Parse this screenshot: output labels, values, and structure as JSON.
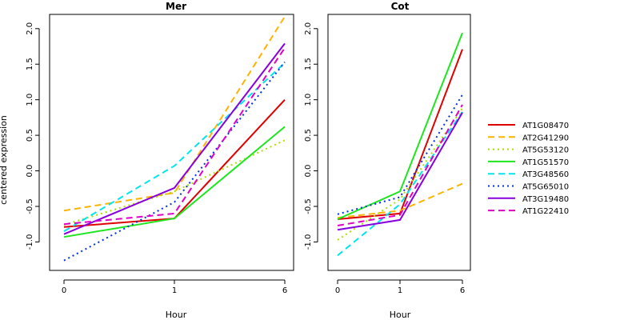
{
  "chart_data": {
    "type": "line",
    "ylabel": "centered expression",
    "xlabel": "Hour",
    "x": [
      0,
      1,
      6
    ],
    "x_tick_labels": [
      "0",
      "1",
      "6"
    ],
    "ylim": [
      -1.4,
      2.2
    ],
    "y_ticks": [
      -1.0,
      -0.5,
      0.0,
      0.5,
      1.0,
      1.5,
      2.0
    ],
    "y_tick_labels": [
      "-1.0",
      "-0.5",
      "0.0",
      "0.5",
      "1.0",
      "1.5",
      "2.0"
    ],
    "legend_position": "right",
    "series_styles": [
      {
        "name": "AT1G08470",
        "color": "#e00000",
        "dash": "solid"
      },
      {
        "name": "AT2G41290",
        "color": "#ffb300",
        "dash": "dashed"
      },
      {
        "name": "AT5G53120",
        "color": "#a8e000",
        "dash": "dotted"
      },
      {
        "name": "AT1G51570",
        "color": "#1ee61e",
        "dash": "solid"
      },
      {
        "name": "AT3G48560",
        "color": "#00e5ee",
        "dash": "dashed"
      },
      {
        "name": "AT5G65010",
        "color": "#0030e0",
        "dash": "dotted"
      },
      {
        "name": "AT3G19480",
        "color": "#8800dd",
        "dash": "solid"
      },
      {
        "name": "AT1G22410",
        "color": "#e000c8",
        "dash": "dashed"
      }
    ],
    "panels": [
      {
        "title": "Mer",
        "series": [
          {
            "name": "AT1G08470",
            "values": [
              -0.79,
              -0.67,
              1.0
            ]
          },
          {
            "name": "AT2G41290",
            "values": [
              -0.56,
              -0.31,
              2.17
            ]
          },
          {
            "name": "AT5G53120",
            "values": [
              -0.76,
              -0.29,
              0.43
            ]
          },
          {
            "name": "AT1G51570",
            "values": [
              -0.93,
              -0.67,
              0.62
            ]
          },
          {
            "name": "AT3G48560",
            "values": [
              -0.85,
              0.07,
              1.52
            ]
          },
          {
            "name": "AT5G65010",
            "values": [
              -1.26,
              -0.44,
              1.53
            ]
          },
          {
            "name": "AT3G19480",
            "values": [
              -0.89,
              -0.24,
              1.79
            ]
          },
          {
            "name": "AT1G22410",
            "values": [
              -0.75,
              -0.6,
              1.73
            ]
          }
        ]
      },
      {
        "title": "Cot",
        "series": [
          {
            "name": "AT1G08470",
            "values": [
              -0.68,
              -0.6,
              1.71
            ]
          },
          {
            "name": "AT2G41290",
            "values": [
              -0.66,
              -0.56,
              -0.18
            ]
          },
          {
            "name": "AT5G53120",
            "values": [
              -0.97,
              -0.4,
              0.88
            ]
          },
          {
            "name": "AT1G51570",
            "values": [
              -0.68,
              -0.29,
              1.94
            ]
          },
          {
            "name": "AT3G48560",
            "values": [
              -1.19,
              -0.47,
              0.83
            ]
          },
          {
            "name": "AT5G65010",
            "values": [
              -0.61,
              -0.37,
              1.07
            ]
          },
          {
            "name": "AT3G19480",
            "values": [
              -0.83,
              -0.69,
              0.82
            ]
          },
          {
            "name": "AT1G22410",
            "values": [
              -0.77,
              -0.62,
              0.93
            ]
          }
        ]
      }
    ]
  }
}
